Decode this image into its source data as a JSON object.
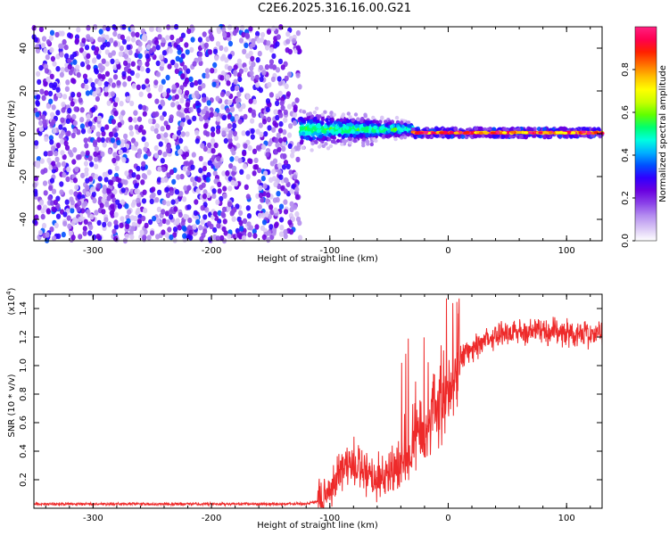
{
  "title": "C2E6.2025.316.16.00.G21",
  "chart_data": [
    {
      "type": "heatmap",
      "name": "spectrogram",
      "xlabel": "Height of straight line (km)",
      "ylabel": "Frequency (Hz)",
      "xlim": [
        -350,
        130
      ],
      "ylim": [
        -50,
        50
      ],
      "xticks": [
        -300,
        -200,
        -100,
        0,
        100
      ],
      "yticks": [
        -40,
        -20,
        0,
        20,
        40
      ],
      "colorbar": {
        "label": "Normalized spectral amplitude",
        "range": [
          0,
          1
        ],
        "ticks": [
          0.0,
          0.2,
          0.4,
          0.6,
          0.8
        ],
        "colors": [
          "#ffffff",
          "#d9c6f5",
          "#b48cf0",
          "#8a40e8",
          "#6a00e0",
          "#3000ff",
          "#0050ff",
          "#00b0ff",
          "#00ffe0",
          "#00ff70",
          "#60ff00",
          "#c8ff00",
          "#ffff00",
          "#ffc000",
          "#ff7000",
          "#ff2000",
          "#ff0050",
          "#ff2080"
        ]
      },
      "regions": [
        {
          "x": [
            -350,
            -125
          ],
          "description": "broadband noise",
          "amplitude": 0.2
        },
        {
          "x": [
            -125,
            -30
          ],
          "freq_center": 2,
          "freq_spread": 8,
          "amplitude": 0.45
        },
        {
          "x": [
            -30,
            130
          ],
          "freq_center": 0.5,
          "freq_spread": 2,
          "amplitude": 0.95
        }
      ]
    },
    {
      "type": "line",
      "name": "snr",
      "xlabel": "Height of straight line (km)",
      "ylabel": "SNR (10 * v/v)",
      "yscale_label": "(x10",
      "yscale_exp": "4",
      "xlim": [
        -350,
        130
      ],
      "ylim": [
        0,
        1.5
      ],
      "xticks": [
        -300,
        -200,
        -100,
        0,
        100
      ],
      "yticks": [
        0.2,
        0.4,
        0.6,
        0.8,
        1.0,
        1.2,
        1.4
      ],
      "color": "#ee2a2a",
      "series": [
        {
          "name": "SNR",
          "x": [
            -350,
            -120,
            -110,
            -100,
            -90,
            -80,
            -70,
            -60,
            -50,
            -40,
            -30,
            -25,
            -20,
            -15,
            -10,
            -5,
            0,
            5,
            10,
            20,
            30,
            40,
            50,
            60,
            70,
            80,
            90,
            100,
            110,
            120,
            130
          ],
          "y": [
            0.03,
            0.03,
            0.05,
            0.12,
            0.28,
            0.32,
            0.22,
            0.2,
            0.25,
            0.3,
            0.4,
            0.55,
            0.48,
            0.6,
            0.75,
            0.65,
            0.8,
            0.95,
            1.05,
            1.1,
            1.18,
            1.22,
            1.23,
            1.24,
            1.24,
            1.24,
            1.24,
            1.23,
            1.22,
            1.22,
            1.23
          ]
        }
      ]
    }
  ]
}
